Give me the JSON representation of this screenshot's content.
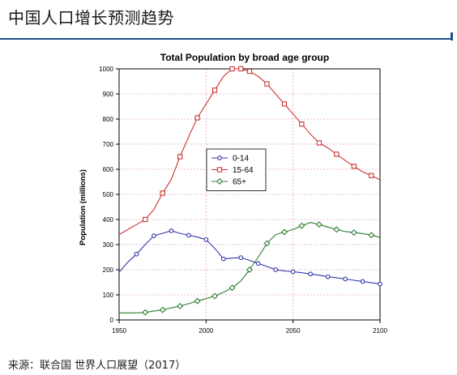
{
  "slide": {
    "title": "中国人口增长预测趋势",
    "source": "来源：联合国 世界人口展望（2017）"
  },
  "chart_data": {
    "type": "line",
    "title": "Total Population by broad age group",
    "xlabel": "",
    "ylabel": "Population (millions)",
    "xlim": [
      1950,
      2100
    ],
    "ylim": [
      0,
      1000
    ],
    "xticks": [
      1950,
      2000,
      2050,
      2100
    ],
    "yticks": [
      0,
      100,
      200,
      300,
      400,
      500,
      600,
      700,
      800,
      900,
      1000
    ],
    "grid": true,
    "legend_position": "center",
    "series": [
      {
        "name": "0-14",
        "color": "#3333aa",
        "marker": "circle",
        "x": [
          1950,
          1955,
          1960,
          1965,
          1970,
          1975,
          1980,
          1985,
          1990,
          1995,
          2000,
          2005,
          2010,
          2015,
          2020,
          2025,
          2030,
          2035,
          2040,
          2045,
          2050,
          2055,
          2060,
          2065,
          2070,
          2075,
          2080,
          2085,
          2090,
          2095,
          2100
        ],
        "y": [
          190,
          230,
          262,
          300,
          335,
          345,
          355,
          345,
          337,
          330,
          320,
          285,
          243,
          246,
          248,
          237,
          225,
          213,
          200,
          195,
          192,
          188,
          183,
          178,
          172,
          168,
          163,
          158,
          153,
          148,
          143
        ],
        "markers_x": [
          1960,
          1970,
          1980,
          1990,
          2000,
          2010,
          2020,
          2030,
          2040,
          2050,
          2060,
          2070,
          2080,
          2090,
          2100
        ]
      },
      {
        "name": "15-64",
        "color": "#cc3333",
        "marker": "square",
        "x": [
          1950,
          1955,
          1960,
          1965,
          1970,
          1975,
          1980,
          1985,
          1990,
          1995,
          2000,
          2005,
          2010,
          2015,
          2020,
          2025,
          2030,
          2035,
          2040,
          2045,
          2050,
          2055,
          2060,
          2065,
          2070,
          2075,
          2080,
          2085,
          2090,
          2095,
          2100
        ],
        "y": [
          340,
          360,
          380,
          400,
          440,
          505,
          560,
          650,
          730,
          805,
          860,
          915,
          970,
          1000,
          1000,
          990,
          970,
          940,
          900,
          860,
          820,
          780,
          740,
          705,
          685,
          660,
          635,
          612,
          590,
          575,
          558
        ],
        "markers_x": [
          1965,
          1975,
          1985,
          1995,
          2005,
          2015,
          2020,
          2025,
          2035,
          2045,
          2055,
          2065,
          2075,
          2085,
          2095
        ]
      },
      {
        "name": "65+",
        "color": "#2e7d32",
        "marker": "diamond",
        "x": [
          1950,
          1955,
          1960,
          1965,
          1970,
          1975,
          1980,
          1985,
          1990,
          1995,
          2000,
          2005,
          2010,
          2015,
          2020,
          2025,
          2030,
          2035,
          2040,
          2045,
          2050,
          2055,
          2060,
          2065,
          2070,
          2075,
          2080,
          2085,
          2090,
          2095,
          2100
        ],
        "y": [
          28,
          28,
          28,
          30,
          35,
          40,
          48,
          55,
          65,
          75,
          85,
          95,
          110,
          128,
          155,
          200,
          250,
          305,
          340,
          350,
          360,
          375,
          388,
          380,
          370,
          360,
          352,
          348,
          344,
          338,
          328
        ],
        "markers_x": [
          1965,
          1975,
          1985,
          1995,
          2005,
          2015,
          2025,
          2035,
          2045,
          2055,
          2065,
          2075,
          2085,
          2095
        ]
      }
    ]
  }
}
